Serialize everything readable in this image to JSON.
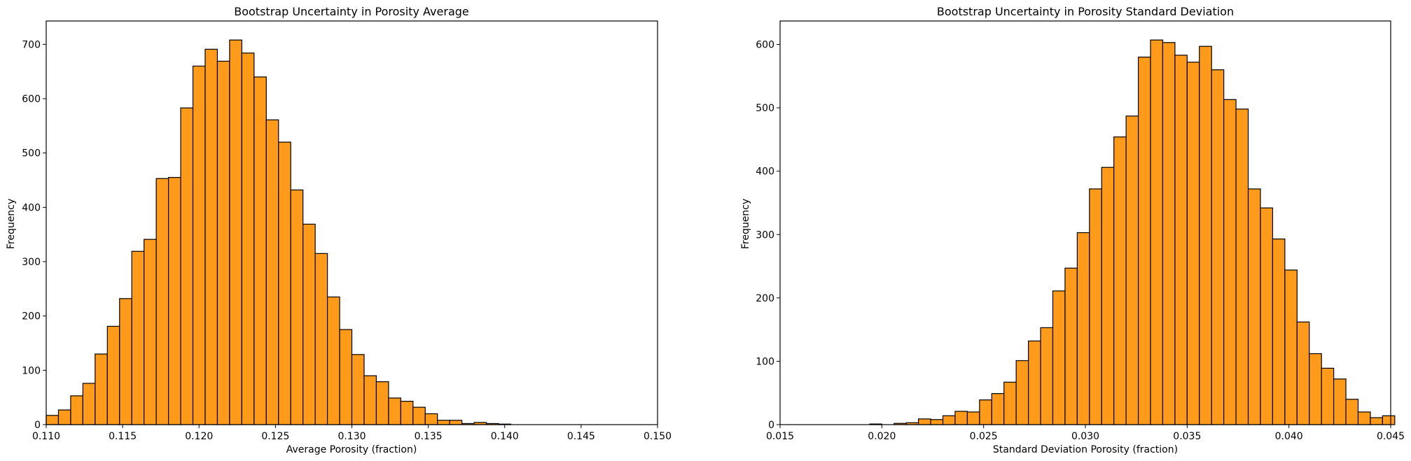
{
  "chart_data": [
    {
      "type": "bar",
      "title": "Bootstrap Uncertainty in Porosity Average",
      "xlabel": "Average Porosity (fraction)",
      "ylabel": "Frequency",
      "xlim": [
        0.11,
        0.15
      ],
      "ylim": [
        0,
        743
      ],
      "xticks": [
        "0.110",
        "0.115",
        "0.120",
        "0.125",
        "0.130",
        "0.135",
        "0.140",
        "0.145",
        "0.150"
      ],
      "xtick_values": [
        0.11,
        0.115,
        0.12,
        0.125,
        0.13,
        0.135,
        0.14,
        0.145,
        0.15
      ],
      "yticks": [
        "0",
        "100",
        "200",
        "300",
        "400",
        "500",
        "600",
        "700"
      ],
      "ytick_values": [
        0,
        100,
        200,
        300,
        400,
        500,
        600,
        700
      ],
      "bins_start": 0.11,
      "bin_width": 0.0008,
      "values": [
        17,
        27,
        53,
        76,
        130,
        181,
        232,
        319,
        341,
        453,
        455,
        583,
        660,
        691,
        669,
        708,
        684,
        640,
        561,
        520,
        432,
        369,
        315,
        235,
        175,
        129,
        90,
        79,
        49,
        43,
        32,
        20,
        8,
        8,
        2,
        4,
        2,
        1,
        0,
        0
      ],
      "bar_color": "#ff9a1a",
      "edge_color": "#000000",
      "grid": false,
      "legend": "none"
    },
    {
      "type": "bar",
      "title": "Bootstrap Uncertainty in Porosity Standard Deviation",
      "xlabel": "Standard Deviation Porosity (fraction)",
      "ylabel": "Frequency",
      "xlim": [
        0.015,
        0.045
      ],
      "ylim": [
        0,
        637
      ],
      "xticks": [
        "0.015",
        "0.020",
        "0.025",
        "0.030",
        "0.035",
        "0.040",
        "0.045"
      ],
      "xtick_values": [
        0.015,
        0.02,
        0.025,
        0.03,
        0.035,
        0.04,
        0.045
      ],
      "yticks": [
        "0",
        "100",
        "200",
        "300",
        "400",
        "500",
        "600"
      ],
      "ytick_values": [
        0,
        100,
        200,
        300,
        400,
        500,
        600
      ],
      "bins_start": 0.0194,
      "bin_width": 0.0006,
      "values": [
        1,
        0,
        2,
        3,
        9,
        8,
        14,
        21,
        20,
        39,
        49,
        67,
        101,
        132,
        153,
        211,
        247,
        303,
        372,
        406,
        454,
        487,
        580,
        607,
        603,
        583,
        572,
        597,
        560,
        513,
        498,
        372,
        342,
        293,
        244,
        162,
        112,
        89,
        72,
        40,
        20,
        11,
        14
      ],
      "bar_color": "#ff9a1a",
      "edge_color": "#000000",
      "grid": false,
      "legend": "none"
    }
  ]
}
